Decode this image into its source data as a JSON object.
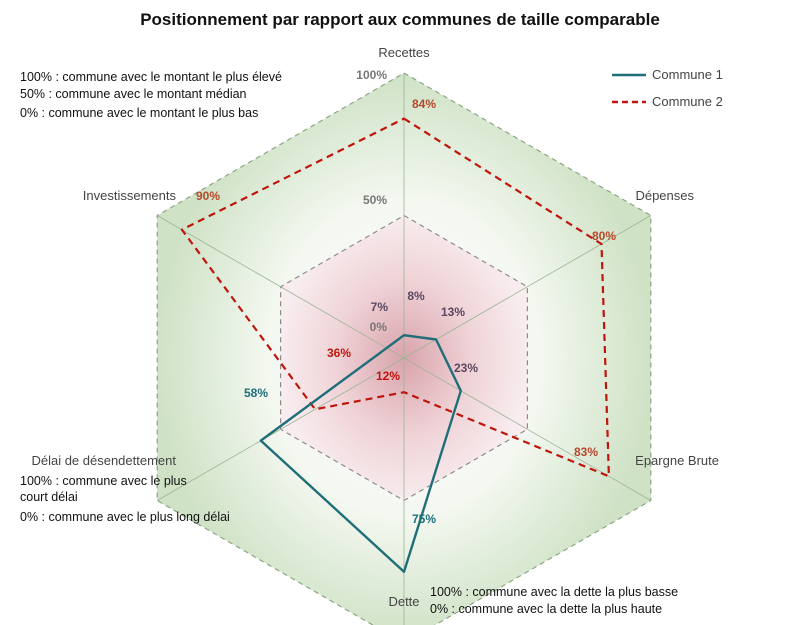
{
  "chart_data": {
    "type": "radar",
    "title": "Positionnement par rapport aux communes de taille comparable",
    "axes": [
      "Recettes",
      "Dépenses",
      "Epargne Brute",
      "Dette",
      "Délai de désendettement",
      "Investissements"
    ],
    "levels": [
      {
        "value": 50,
        "label": "50%"
      },
      {
        "value": 100,
        "label": "100%"
      }
    ],
    "range": [
      0,
      100
    ],
    "series": [
      {
        "name": "Commune 1",
        "color": "#1f6e78",
        "style": "solid",
        "values": [
          8,
          13,
          23,
          75,
          58,
          7
        ],
        "labels": [
          "8%",
          "13%",
          "23%",
          "75%",
          "58%",
          "7%"
        ]
      },
      {
        "name": "Commune 2",
        "color": "#c0150c",
        "style": "dashed",
        "values": [
          84,
          80,
          83,
          12,
          36,
          90
        ],
        "labels": [
          "84%",
          "80%",
          "83%",
          "12%",
          "36%",
          "90%"
        ]
      }
    ],
    "extra_labels": [
      "0%"
    ],
    "notes": {
      "top_left": [
        "100% : commune avec le montant le plus élevé",
        "50% : commune avec le montant médian",
        "0% : commune avec le montant le plus bas"
      ],
      "left": [
        "100% : commune avec le plus",
        "court délai",
        "0% : commune avec le plus long délai"
      ],
      "bottom": [
        "100% : commune avec la dette la plus basse",
        "0% : commune avec la dette la plus haute"
      ]
    },
    "legend_position": "top-right"
  }
}
